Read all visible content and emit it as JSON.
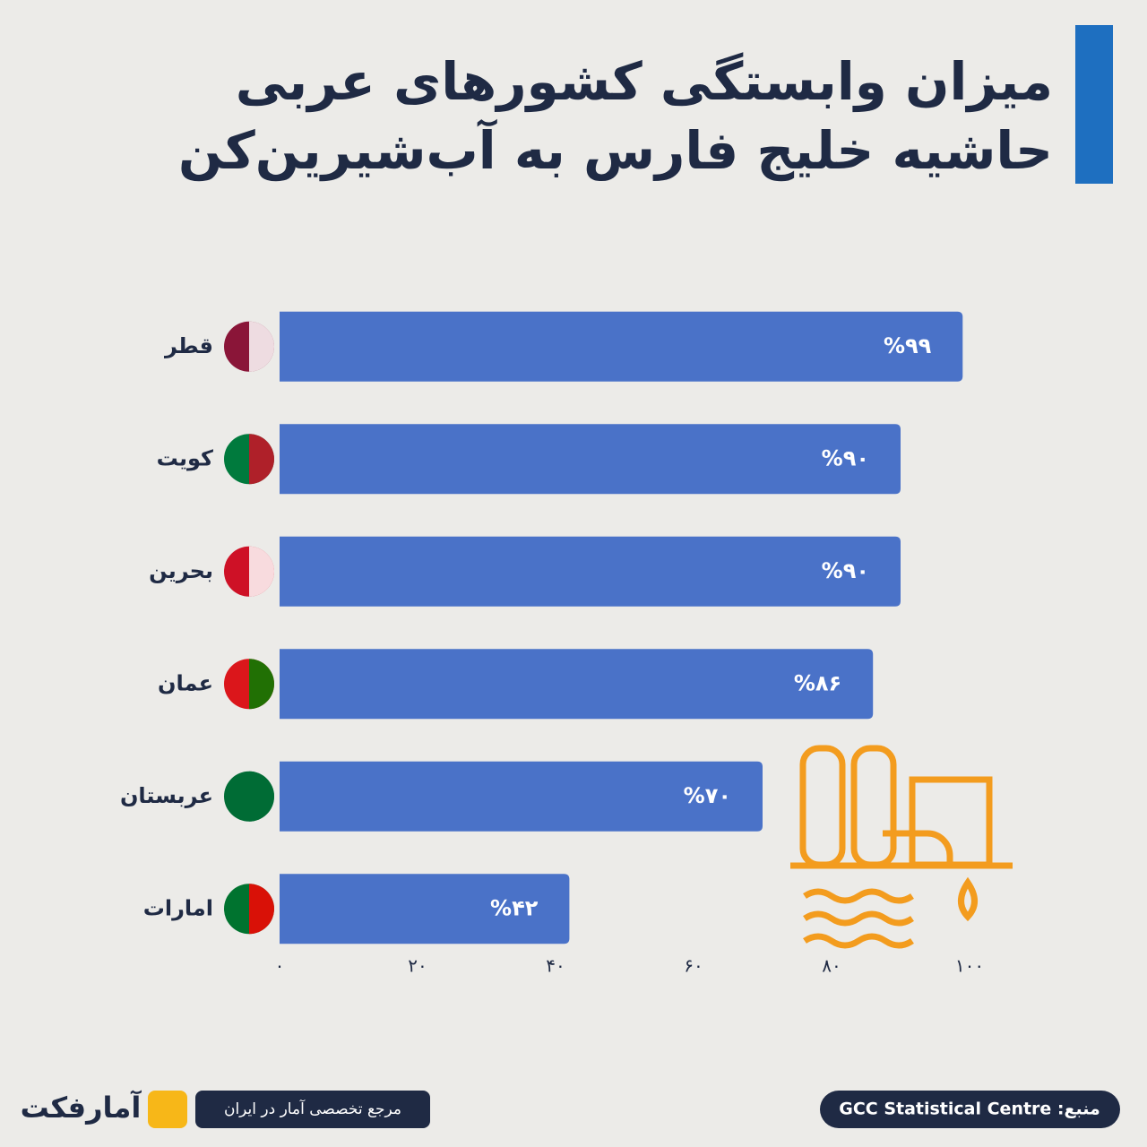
{
  "chart_data": {
    "type": "bar",
    "orientation": "horizontal",
    "title": [
      "میزان وابستگی کشورهای عربی",
      "حاشیه خلیج فارس به آب‌شیرین‌کن"
    ],
    "categories": [
      "قطر",
      "کویت",
      "بحرین",
      "عمان",
      "عربستان",
      "امارات"
    ],
    "values": [
      99,
      90,
      90,
      86,
      70,
      42
    ],
    "value_labels": [
      "%۹۹",
      "%۹۰",
      "%۹۰",
      "%۸۶",
      "%۷۰",
      "%۴۲"
    ],
    "color": "#4a72c8",
    "xlim": [
      0,
      100
    ],
    "xticks": [
      {
        "value": 0,
        "label": "۰"
      },
      {
        "value": 20,
        "label": "۲۰"
      },
      {
        "value": 40,
        "label": "۴۰"
      },
      {
        "value": 60,
        "label": "۶۰"
      },
      {
        "value": 80,
        "label": "۸۰"
      },
      {
        "value": 100,
        "label": "۱۰۰"
      }
    ],
    "grid": false
  },
  "footer": {
    "source": "منبع: GCC Statistical Centre",
    "tagline": "مرجع تخصصی آمار در ایران",
    "brand": "آمارفکت"
  }
}
